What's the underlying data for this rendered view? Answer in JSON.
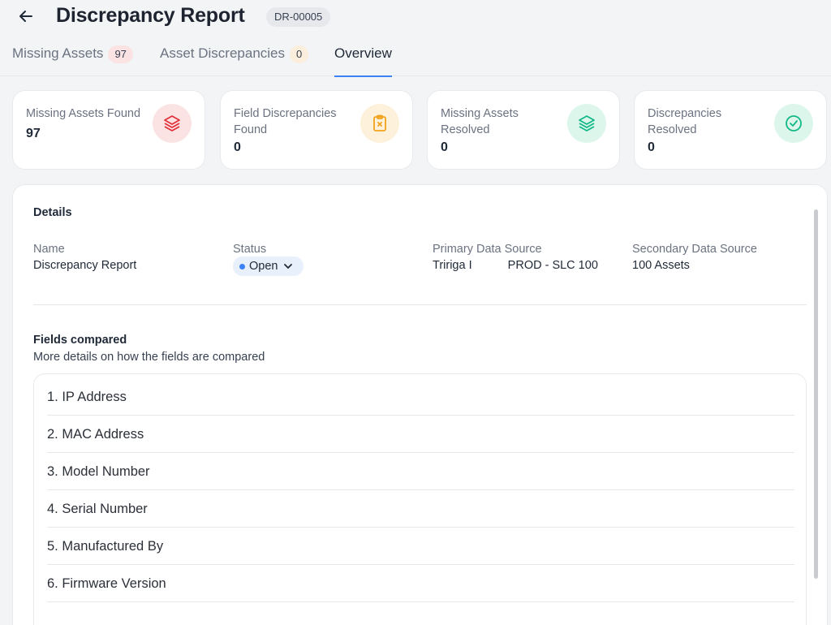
{
  "header": {
    "back_icon": "arrow-left-icon",
    "title": "Discrepancy Report",
    "report_id": "DR-00005"
  },
  "tabs": [
    {
      "label": "Missing Assets",
      "count": "97",
      "active": false
    },
    {
      "label": "Asset Discrepancies",
      "count": "0",
      "active": false
    },
    {
      "label": "Overview",
      "active": true
    }
  ],
  "stats": [
    {
      "label": "Missing Assets Found",
      "value": "97",
      "icon": "layers-icon",
      "icon_color": "#e0313b",
      "icon_bg": "#fbe3e3"
    },
    {
      "label": "Field Discrepancies Found",
      "value": "0",
      "icon": "clipboard-x-icon",
      "icon_color": "#f0a21a",
      "icon_bg": "#fdf1dc"
    },
    {
      "label": "Missing Assets Resolved",
      "value": "0",
      "icon": "layers-icon",
      "icon_color": "#12b886",
      "icon_bg": "#dcf6ec"
    },
    {
      "label": "Discrepancies Resolved",
      "value": "0",
      "icon": "check-circle-icon",
      "icon_color": "#12b886",
      "icon_bg": "#dcf6ec"
    }
  ],
  "details": {
    "title": "Details",
    "name_label": "Name",
    "name_value": "Discrepancy Report",
    "status_label": "Status",
    "status_value": "Open",
    "primary_label": "Primary Data Source",
    "primary_value": "Tririga I",
    "primary_value_2": "PROD - SLC 100",
    "secondary_label": "Secondary Data Source",
    "secondary_value": "100 Assets"
  },
  "fields": {
    "title": "Fields compared",
    "subtitle": "More details on how the fields are compared",
    "items": [
      "1. IP Address",
      "2. MAC Address",
      "3. Model Number",
      "4. Serial Number",
      "5. Manufactured By",
      "6. Firmware Version"
    ]
  },
  "colors": {
    "accent": "#3b82f6",
    "status_bg": "#e8f0fb"
  }
}
